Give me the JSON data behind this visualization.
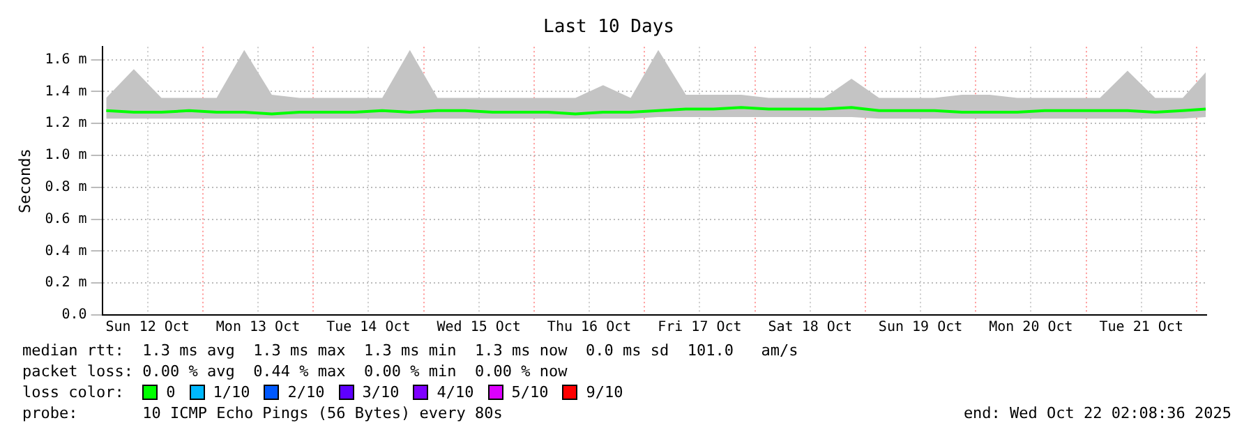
{
  "chart_data": {
    "type": "line",
    "title": "Last 10 Days",
    "ylabel": "Seconds",
    "x": [
      "2025-10-12T03:00",
      "2025-10-12T09:00",
      "2025-10-12T15:00",
      "2025-10-12T21:00",
      "2025-10-13T03:00",
      "2025-10-13T09:00",
      "2025-10-13T15:00",
      "2025-10-13T21:00",
      "2025-10-14T03:00",
      "2025-10-14T09:00",
      "2025-10-14T15:00",
      "2025-10-14T21:00",
      "2025-10-15T03:00",
      "2025-10-15T09:00",
      "2025-10-15T15:00",
      "2025-10-15T21:00",
      "2025-10-16T03:00",
      "2025-10-16T09:00",
      "2025-10-16T15:00",
      "2025-10-16T21:00",
      "2025-10-17T03:00",
      "2025-10-17T09:00",
      "2025-10-17T15:00",
      "2025-10-17T21:00",
      "2025-10-18T03:00",
      "2025-10-18T09:00",
      "2025-10-18T15:00",
      "2025-10-18T21:00",
      "2025-10-19T03:00",
      "2025-10-19T09:00",
      "2025-10-19T15:00",
      "2025-10-19T21:00",
      "2025-10-20T03:00",
      "2025-10-20T09:00",
      "2025-10-20T15:00",
      "2025-10-20T21:00",
      "2025-10-21T03:00",
      "2025-10-21T09:00",
      "2025-10-21T15:00",
      "2025-10-21T21:00",
      "2025-10-22T02:00"
    ],
    "series": [
      {
        "name": "0",
        "color": "#00ff00",
        "values": [
          1.28,
          1.27,
          1.27,
          1.28,
          1.27,
          1.27,
          1.26,
          1.27,
          1.27,
          1.27,
          1.28,
          1.27,
          1.28,
          1.28,
          1.27,
          1.27,
          1.27,
          1.26,
          1.27,
          1.27,
          1.28,
          1.29,
          1.29,
          1.3,
          1.29,
          1.29,
          1.29,
          1.3,
          1.28,
          1.28,
          1.28,
          1.27,
          1.27,
          1.27,
          1.28,
          1.28,
          1.28,
          1.28,
          1.27,
          1.28,
          1.29
        ],
        "lower": [
          1.23,
          1.23,
          1.23,
          1.23,
          1.23,
          1.23,
          1.23,
          1.23,
          1.23,
          1.23,
          1.23,
          1.23,
          1.23,
          1.23,
          1.23,
          1.23,
          1.23,
          1.23,
          1.23,
          1.23,
          1.24,
          1.24,
          1.24,
          1.24,
          1.24,
          1.24,
          1.24,
          1.24,
          1.23,
          1.23,
          1.23,
          1.23,
          1.23,
          1.23,
          1.23,
          1.23,
          1.23,
          1.23,
          1.23,
          1.23,
          1.24
        ],
        "upper": [
          1.36,
          1.54,
          1.36,
          1.36,
          1.36,
          1.66,
          1.38,
          1.36,
          1.36,
          1.36,
          1.36,
          1.66,
          1.36,
          1.36,
          1.36,
          1.36,
          1.36,
          1.36,
          1.44,
          1.36,
          1.66,
          1.38,
          1.38,
          1.38,
          1.36,
          1.36,
          1.36,
          1.48,
          1.36,
          1.36,
          1.36,
          1.38,
          1.38,
          1.36,
          1.36,
          1.36,
          1.36,
          1.53,
          1.36,
          1.36,
          1.52
        ]
      },
      {
        "name": "1/10",
        "color": "#00b8ff",
        "values": [
          null,
          null,
          null,
          null,
          null,
          null,
          null,
          null,
          null,
          null,
          null,
          null,
          null,
          null,
          null,
          null,
          null,
          null,
          null,
          null,
          null,
          null,
          null,
          null,
          null,
          null,
          null,
          null,
          null,
          null,
          null,
          null,
          null,
          null,
          null,
          null,
          null,
          null,
          null,
          null,
          null
        ]
      },
      {
        "name": "2/10",
        "color": "#0059ff",
        "values": [
          null,
          null,
          null,
          null,
          null,
          null,
          null,
          null,
          null,
          null,
          null,
          null,
          null,
          null,
          null,
          null,
          null,
          null,
          null,
          null,
          null,
          null,
          null,
          null,
          null,
          null,
          null,
          null,
          null,
          null,
          null,
          null,
          null,
          null,
          null,
          null,
          null,
          null,
          null,
          null,
          null
        ]
      },
      {
        "name": "3/10",
        "color": "#5e00ff",
        "values": [
          null,
          null,
          null,
          null,
          null,
          null,
          null,
          null,
          null,
          null,
          null,
          null,
          null,
          null,
          null,
          null,
          null,
          null,
          null,
          null,
          null,
          null,
          null,
          null,
          null,
          null,
          null,
          null,
          null,
          null,
          null,
          null,
          null,
          null,
          null,
          null,
          null,
          null,
          null,
          null,
          null
        ]
      },
      {
        "name": "4/10",
        "color": "#7e00ff",
        "values": [
          null,
          null,
          null,
          null,
          null,
          null,
          null,
          null,
          null,
          null,
          null,
          null,
          null,
          null,
          null,
          null,
          null,
          null,
          null,
          null,
          null,
          null,
          null,
          null,
          null,
          null,
          null,
          null,
          null,
          null,
          null,
          null,
          null,
          null,
          null,
          null,
          null,
          null,
          null,
          null,
          null
        ]
      },
      {
        "name": "5/10",
        "color": "#dd00ff",
        "values": [
          null,
          null,
          null,
          null,
          null,
          null,
          null,
          null,
          null,
          null,
          null,
          null,
          null,
          null,
          null,
          null,
          null,
          null,
          null,
          null,
          null,
          null,
          null,
          null,
          null,
          null,
          null,
          null,
          null,
          null,
          null,
          null,
          null,
          null,
          null,
          null,
          null,
          null,
          null,
          null,
          null
        ]
      },
      {
        "name": "9/10",
        "color": "#ff0000",
        "values": [
          null,
          null,
          null,
          null,
          null,
          null,
          null,
          null,
          null,
          null,
          null,
          null,
          null,
          null,
          null,
          null,
          null,
          null,
          null,
          null,
          null,
          null,
          null,
          null,
          null,
          null,
          null,
          null,
          null,
          null,
          null,
          null,
          null,
          null,
          null,
          null,
          null,
          null,
          null,
          null,
          null
        ]
      }
    ],
    "legend_title": "loss color:",
    "legend": "bottom",
    "marker": "none",
    "grid": true,
    "xlim": [
      "2025-10-12T02:08",
      "2025-10-22T02:08"
    ],
    "xticks": [
      {
        "value": "2025-10-12T12:00",
        "label": "Sun 12 Oct"
      },
      {
        "value": "2025-10-13T00:00",
        "label": null
      },
      {
        "value": "2025-10-13T12:00",
        "label": "Mon 13 Oct"
      },
      {
        "value": "2025-10-14T00:00",
        "label": null
      },
      {
        "value": "2025-10-14T12:00",
        "label": "Tue 14 Oct"
      },
      {
        "value": "2025-10-15T00:00",
        "label": null
      },
      {
        "value": "2025-10-15T12:00",
        "label": "Wed 15 Oct"
      },
      {
        "value": "2025-10-16T00:00",
        "label": null
      },
      {
        "value": "2025-10-16T12:00",
        "label": "Thu 16 Oct"
      },
      {
        "value": "2025-10-17T00:00",
        "label": null
      },
      {
        "value": "2025-10-17T12:00",
        "label": "Fri 17 Oct"
      },
      {
        "value": "2025-10-18T00:00",
        "label": null
      },
      {
        "value": "2025-10-18T12:00",
        "label": "Sat 18 Oct"
      },
      {
        "value": "2025-10-19T00:00",
        "label": null
      },
      {
        "value": "2025-10-19T12:00",
        "label": "Sun 19 Oct"
      },
      {
        "value": "2025-10-20T00:00",
        "label": null
      },
      {
        "value": "2025-10-20T12:00",
        "label": "Mon 20 Oct"
      },
      {
        "value": "2025-10-21T00:00",
        "label": null
      },
      {
        "value": "2025-10-21T12:00",
        "label": "Tue 21 Oct"
      },
      {
        "value": "2025-10-22T00:00",
        "label": null
      }
    ],
    "ylim": [
      0,
      1.68
    ],
    "yticks": [
      {
        "value": 0,
        "label": "0.0"
      },
      {
        "value": 0.2,
        "label": "0.2 m"
      },
      {
        "value": 0.4,
        "label": "0.4 m"
      },
      {
        "value": 0.6,
        "label": "0.6 m"
      },
      {
        "value": 0.8,
        "label": "0.8 m"
      },
      {
        "value": 1.0,
        "label": "1.0 m"
      },
      {
        "value": 1.2,
        "label": "1.2 m"
      },
      {
        "value": 1.4,
        "label": "1.4 m"
      },
      {
        "value": 1.6,
        "label": "1.6 m"
      }
    ],
    "annotations": [
      "median rtt:  1.3 ms avg  1.3 ms max  1.3 ms min  1.3 ms now  0.0 ms sd  101.0   am/s",
      "packet loss: 0.00 % avg  0.44 % max  0.00 % min  0.00 % now",
      "probe:       10 ICMP Echo Pings (56 Bytes) every 80s",
      "end: Wed Oct 22 02:08:36 2025"
    ]
  }
}
